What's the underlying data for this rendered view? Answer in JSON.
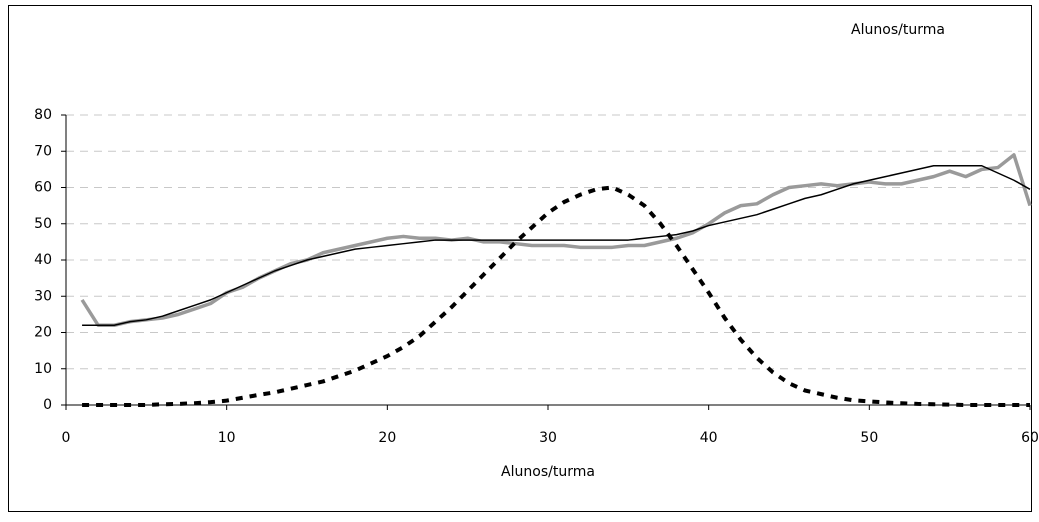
{
  "chart_data": {
    "type": "line",
    "annotation": "Alunos/turma",
    "x_label": "Alunos/turma",
    "x": [
      1,
      2,
      3,
      4,
      5,
      6,
      7,
      8,
      9,
      10,
      11,
      12,
      13,
      14,
      15,
      16,
      17,
      18,
      19,
      20,
      21,
      22,
      23,
      24,
      25,
      26,
      27,
      28,
      29,
      30,
      31,
      32,
      33,
      34,
      35,
      36,
      37,
      38,
      39,
      40,
      41,
      42,
      43,
      44,
      45,
      46,
      47,
      48,
      49,
      50,
      51,
      52,
      53,
      54,
      55,
      56,
      57,
      58,
      59,
      60
    ],
    "series": [
      {
        "color": "#9a9a9a",
        "style": "thick",
        "values": [
          29,
          22,
          22,
          23,
          23.5,
          24,
          25,
          26.5,
          28,
          31,
          32.5,
          35,
          37,
          39,
          40,
          42,
          43,
          44,
          45,
          46,
          46.5,
          46,
          46,
          45.5,
          46,
          45,
          45,
          44.5,
          44,
          44,
          44,
          43.5,
          43.5,
          43.5,
          44,
          44,
          45,
          46,
          47.5,
          50,
          53,
          55,
          55.5,
          58,
          60,
          60.5,
          61,
          60.5,
          61,
          61.5,
          61,
          61,
          62,
          63,
          64.5,
          63,
          65,
          65.5,
          69,
          55
        ]
      },
      {
        "color": "#000000",
        "style": "thin",
        "values": [
          22,
          22,
          22,
          23,
          23.5,
          24.5,
          26,
          27.5,
          29,
          31,
          33,
          35,
          37,
          38.5,
          40,
          41,
          42,
          43,
          43.5,
          44,
          44.5,
          45,
          45.5,
          45.5,
          45.5,
          45.5,
          45.5,
          45.5,
          45.5,
          45.5,
          45.5,
          45.5,
          45.5,
          45.5,
          45.5,
          46,
          46.5,
          47,
          48,
          49.5,
          50.5,
          51.5,
          52.5,
          54,
          55.5,
          57,
          58,
          59.5,
          61,
          62,
          63,
          64,
          65,
          66,
          66,
          66,
          66,
          64,
          62,
          59.5
        ]
      },
      {
        "color": "#000000",
        "style": "dashed",
        "values": [
          0,
          0,
          0,
          0,
          0,
          0.2,
          0.3,
          0.5,
          0.8,
          1.2,
          2,
          2.8,
          3.5,
          4.5,
          5.5,
          6.5,
          8,
          9.5,
          11.5,
          13.5,
          16,
          19,
          23,
          27,
          31.5,
          36,
          40.5,
          45,
          49,
          53,
          56,
          58,
          59.5,
          60,
          58,
          55,
          50,
          44,
          37.5,
          31,
          24,
          18,
          13,
          9,
          6,
          4,
          3,
          2,
          1.3,
          1,
          0.7,
          0.5,
          0.3,
          0.2,
          0.1,
          0,
          0,
          0,
          0,
          0
        ]
      }
    ],
    "xlim": [
      0,
      60
    ],
    "xticks": [
      0,
      10,
      20,
      30,
      40,
      50,
      60
    ],
    "ylim": [
      0,
      80
    ],
    "yticks": [
      0,
      10,
      20,
      30,
      40,
      50,
      60,
      70,
      80
    ],
    "grid": true
  }
}
